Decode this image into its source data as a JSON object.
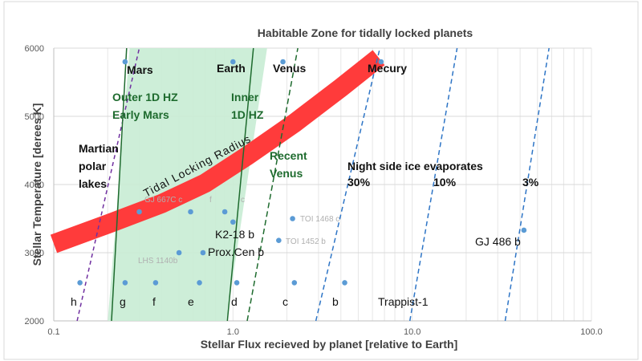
{
  "chart_data": {
    "type": "scatter",
    "title": "Habitable Zone for tidally locked planets",
    "xlabel": "Stellar Flux recieved by planet [relative to Earth]",
    "ylabel": "Stellar Temperature [derees K]",
    "x_scale": "log",
    "xlim": [
      0.1,
      100
    ],
    "ylim": [
      2000,
      6000
    ],
    "x_ticks": [
      "0.1",
      "1.0",
      "10.0",
      "100.0"
    ],
    "y_ticks": [
      "2000",
      "3000",
      "4000",
      "5000",
      "6000"
    ],
    "grid": true,
    "colors": {
      "points": "#5b9bd5",
      "tidal_band": "#ff3b3b",
      "habitable_zone": "#c8ecd4",
      "hz_lines": "#1e6b2e",
      "evap_lines": "#2e75c6",
      "martian_line": "#7030a0"
    },
    "points": [
      {
        "x": 0.25,
        "y": 5800,
        "label": "Mars"
      },
      {
        "x": 1.0,
        "y": 5800,
        "label": "Earth"
      },
      {
        "x": 1.9,
        "y": 5800,
        "label": "Venus"
      },
      {
        "x": 6.7,
        "y": 5800,
        "label": "Mecury"
      },
      {
        "x": 0.14,
        "y": 2560,
        "label": "h"
      },
      {
        "x": 0.25,
        "y": 2560,
        "label": "g"
      },
      {
        "x": 0.37,
        "y": 2560,
        "label": "f"
      },
      {
        "x": 0.65,
        "y": 2560,
        "label": "e"
      },
      {
        "x": 1.05,
        "y": 2560,
        "label": "d"
      },
      {
        "x": 2.2,
        "y": 2560,
        "label": "c"
      },
      {
        "x": 4.2,
        "y": 2560,
        "label": "b"
      },
      {
        "x": 0.5,
        "y": 3000,
        "label": "LHS 1140b"
      },
      {
        "x": 0.68,
        "y": 3000,
        "label": "Prox.Cen b"
      },
      {
        "x": 1.0,
        "y": 3450,
        "label": "K2-18 b"
      },
      {
        "x": 2.15,
        "y": 3500,
        "label": "TOI 1468 c"
      },
      {
        "x": 1.8,
        "y": 3180,
        "label": "TOI 1452 b"
      },
      {
        "x": 0.3,
        "y": 3600,
        "label": ""
      },
      {
        "x": 0.58,
        "y": 3600,
        "label": ""
      },
      {
        "x": 0.9,
        "y": 3600,
        "label": ""
      },
      {
        "x": 42,
        "y": 3330,
        "label": "GJ 486 b"
      }
    ],
    "annotations": {
      "trappist": "Trappist-1",
      "outer_hz": [
        "Outer 1D HZ",
        "Early Mars"
      ],
      "inner_hz": [
        "Inner",
        "1D HZ"
      ],
      "recent_venus": [
        "Recent",
        "Venus"
      ],
      "martian": [
        "Martian",
        "polar",
        "lakes"
      ],
      "tidal": "Tidal Locking Radius",
      "ice_title": "Night side ice evaporates",
      "ice_30": "30%",
      "ice_10": "10%",
      "ice_3": "3%",
      "gj667": "GJ 667C c",
      "f_faint": "f",
      "c_faint": "c"
    }
  }
}
